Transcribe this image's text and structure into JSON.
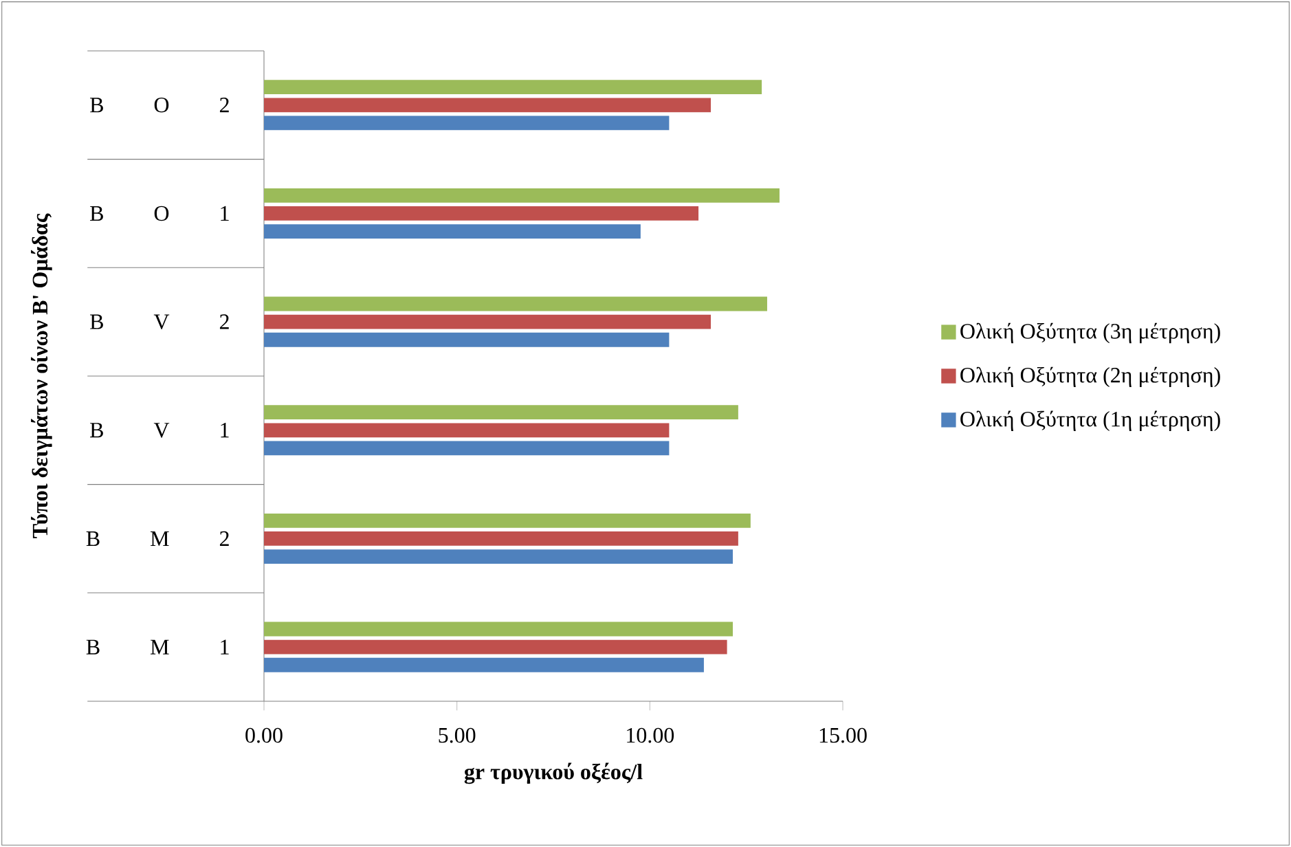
{
  "chart_data": {
    "type": "bar",
    "orientation": "horizontal",
    "xlabel": "gr τρυγικού οξέος/l",
    "ylabel": "Τύποι δειγμάτων οίνων B' Ομάδας",
    "categories": [
      "B O 2",
      "B O 1",
      "B V 2",
      "B V 1",
      "B M 2",
      "B M 1"
    ],
    "series": [
      {
        "name": "Ολική Οξύτητα (1η μέτρηση)",
        "color": "#4f81bd",
        "values": [
          10.5,
          9.76,
          10.5,
          10.5,
          12.15,
          11.4
        ]
      },
      {
        "name": "Ολική Οξύτητα (2η μέτρηση)",
        "color": "#c0504d",
        "values": [
          11.58,
          11.26,
          11.58,
          10.5,
          12.29,
          12.0
        ]
      },
      {
        "name": "Ολική Οξύτητα (3η μέτρηση)",
        "color": "#9bbb59",
        "values": [
          12.9,
          13.36,
          13.04,
          12.29,
          12.61,
          12.15
        ]
      }
    ],
    "xlim": [
      0,
      15
    ],
    "xticks": [
      {
        "value": 0,
        "label": "0.00"
      },
      {
        "value": 5,
        "label": "5.00"
      },
      {
        "value": 10,
        "label": "10.00"
      },
      {
        "value": 15,
        "label": "15.00"
      }
    ],
    "grid": false,
    "legend": "right"
  }
}
